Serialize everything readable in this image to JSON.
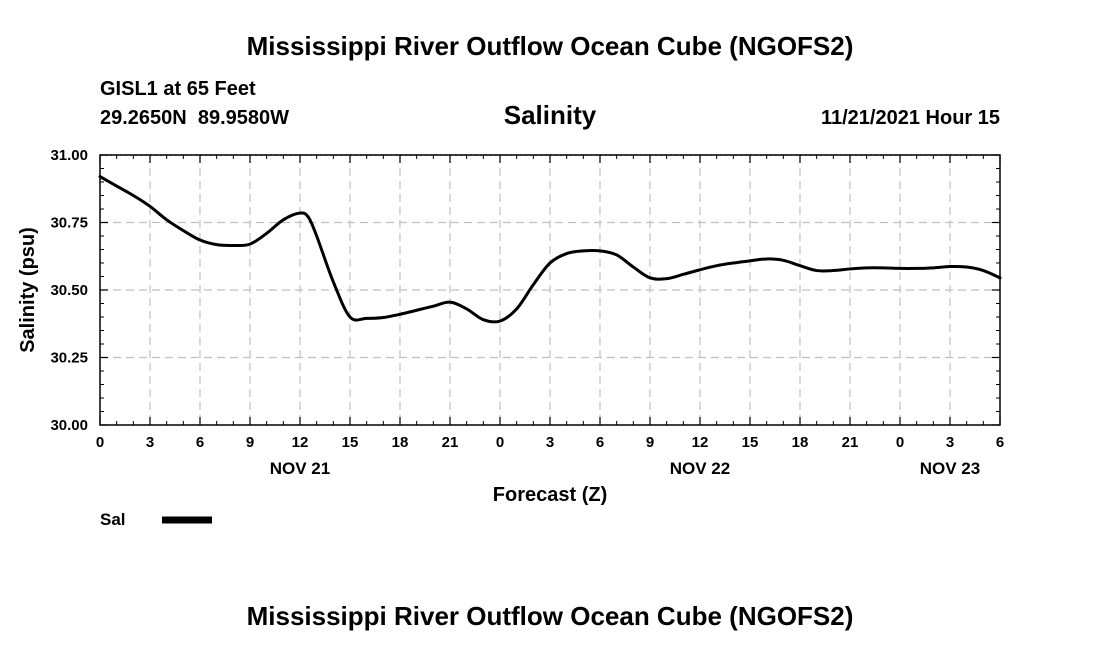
{
  "header": {
    "title": "Mississippi River Outflow Ocean Cube (NGOFS2)",
    "station_line": "GISL1 at 65 Feet",
    "coords_line": "29.2650N  89.9580W",
    "timestamp": "11/21/2021 Hour 15"
  },
  "footer": {
    "title": "Mississippi River Outflow Ocean Cube (NGOFS2)"
  },
  "chart_data": {
    "type": "line",
    "title": "Salinity",
    "xlabel": "Forecast (Z)",
    "ylabel": "Salinity (psu)",
    "ylim": [
      30.0,
      31.0
    ],
    "y_ticks": [
      "30.00",
      "30.25",
      "30.50",
      "30.75",
      "31.00"
    ],
    "y_tick_values": [
      30.0,
      30.25,
      30.5,
      30.75,
      31.0
    ],
    "xlim": [
      0,
      54
    ],
    "x_tick_values": [
      0,
      3,
      6,
      9,
      12,
      15,
      18,
      21,
      24,
      27,
      30,
      33,
      36,
      39,
      42,
      45,
      48,
      51,
      54
    ],
    "x_tick_labels": [
      "0",
      "3",
      "6",
      "9",
      "12",
      "15",
      "18",
      "21",
      "0",
      "3",
      "6",
      "9",
      "12",
      "15",
      "18",
      "21",
      "0",
      "3",
      "6"
    ],
    "date_labels": [
      {
        "label": "NOV 21",
        "hour": 12
      },
      {
        "label": "NOV 22",
        "hour": 36
      },
      {
        "label": "NOV 23",
        "hour": 51
      }
    ],
    "grid": true,
    "legend": {
      "position": "bottom-left",
      "entries": [
        "Sal"
      ]
    },
    "series": [
      {
        "name": "Sal",
        "x": [
          0,
          1,
          2,
          3,
          4,
          5,
          6,
          7,
          8,
          9,
          10,
          11,
          12,
          12.5,
          13,
          14,
          15,
          16,
          17,
          18,
          19,
          20,
          21,
          22,
          23,
          24,
          25,
          26,
          27,
          28,
          29,
          30,
          31,
          32,
          33,
          34,
          35,
          36,
          37,
          38,
          39,
          40,
          41,
          42,
          43,
          44,
          45,
          46,
          47,
          48,
          49,
          50,
          51,
          52,
          53,
          54
        ],
        "y": [
          30.92,
          30.885,
          30.85,
          30.81,
          30.76,
          30.72,
          30.685,
          30.668,
          30.665,
          30.67,
          30.71,
          30.76,
          30.785,
          30.77,
          30.7,
          30.53,
          30.4,
          30.395,
          30.398,
          30.41,
          30.425,
          30.44,
          30.455,
          30.43,
          30.39,
          30.385,
          30.43,
          30.52,
          30.6,
          30.635,
          30.645,
          30.645,
          30.63,
          30.585,
          30.545,
          30.542,
          30.558,
          30.575,
          30.59,
          30.6,
          30.608,
          30.615,
          30.61,
          30.59,
          30.572,
          30.572,
          30.578,
          30.582,
          30.582,
          30.58,
          30.58,
          30.582,
          30.587,
          30.585,
          30.572,
          30.545
        ]
      }
    ]
  }
}
